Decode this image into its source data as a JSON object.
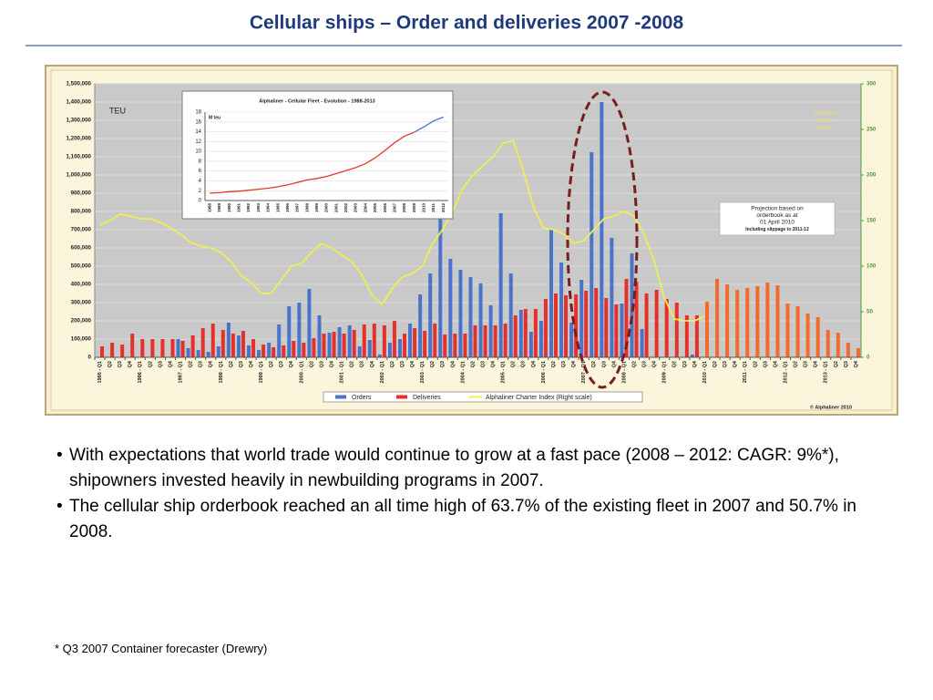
{
  "header": {
    "title": "Cellular ships – Order and deliveries 2007 -2008"
  },
  "chart_data": [
    {
      "type": "bar",
      "ylabel": "TEU",
      "y2label": [
        "Alphaliner",
        "Charter",
        "Index"
      ],
      "credit": "© Alphaliner 2010",
      "annotation": [
        "Projection based on",
        "orderbook as at",
        "01 April 2010",
        "Including slippage to 2011-12"
      ],
      "categories": [
        "1995 - Q1",
        "Q2",
        "Q3",
        "Q4",
        "1996 - Q1",
        "Q2",
        "Q3",
        "Q4",
        "1997 - Q1",
        "Q2",
        "Q3",
        "Q4",
        "1998 - Q1",
        "Q2",
        "Q3",
        "Q4",
        "1999 - Q1",
        "Q2",
        "Q3",
        "Q4",
        "2000 - Q1",
        "Q2",
        "Q3",
        "Q4",
        "2001 - Q1",
        "Q2",
        "Q3",
        "Q4",
        "2002 - Q1",
        "Q2",
        "Q3",
        "Q4",
        "2003 - Q1",
        "Q2",
        "Q3",
        "Q4",
        "2004 - Q1",
        "Q2",
        "Q3",
        "Q4",
        "2005 - Q1",
        "Q2",
        "Q3",
        "Q4",
        "2006 - Q1",
        "Q2",
        "Q3",
        "Q4",
        "2007 - Q1",
        "Q2",
        "Q3",
        "Q4",
        "2008 - Q1",
        "Q2",
        "Q3",
        "Q4",
        "2009 - Q1",
        "Q2",
        "Q3",
        "Q4",
        "2010 - Q1",
        "Q2",
        "Q3",
        "Q4",
        "2011 - Q1",
        "Q2",
        "Q3",
        "Q4",
        "2012 - Q1",
        "Q2",
        "Q3",
        "Q4",
        "2013 - Q1",
        "Q2",
        "Q3",
        "Q4"
      ],
      "projection_start": "2010 - Q1",
      "series": [
        {
          "name": "Orders",
          "color": "#4a74c9",
          "values": [
            0,
            0,
            0,
            0,
            0,
            0,
            0,
            0,
            100000,
            50000,
            40000,
            30000,
            60000,
            190000,
            120000,
            65000,
            40000,
            80000,
            180000,
            280000,
            300000,
            375000,
            230000,
            135000,
            165000,
            175000,
            60000,
            95000,
            15000,
            80000,
            100000,
            185000,
            345000,
            460000,
            780000,
            540000,
            480000,
            440000,
            405000,
            285000,
            790000,
            460000,
            260000,
            140000,
            200000,
            700000,
            520000,
            190000,
            425000,
            1125000,
            1400000,
            655000,
            295000,
            570000,
            155000,
            0,
            0,
            0,
            0,
            15000,
            null,
            null,
            null,
            null,
            null,
            null,
            null,
            null,
            null,
            null,
            null,
            null,
            null,
            null,
            null,
            null
          ]
        },
        {
          "name": "Deliveries",
          "color": "#e5312a",
          "projection_color": "#f26b2c",
          "values": [
            60000,
            80000,
            70000,
            130000,
            100000,
            100000,
            100000,
            100000,
            90000,
            120000,
            160000,
            185000,
            150000,
            130000,
            145000,
            100000,
            70000,
            55000,
            65000,
            90000,
            80000,
            105000,
            130000,
            140000,
            130000,
            150000,
            180000,
            185000,
            175000,
            200000,
            130000,
            160000,
            145000,
            185000,
            125000,
            130000,
            130000,
            175000,
            175000,
            175000,
            185000,
            230000,
            265000,
            265000,
            320000,
            350000,
            340000,
            345000,
            365000,
            380000,
            325000,
            290000,
            430000,
            415000,
            350000,
            370000,
            320000,
            300000,
            230000,
            230000,
            305000,
            430000,
            400000,
            370000,
            380000,
            390000,
            410000,
            395000,
            295000,
            280000,
            240000,
            220000,
            150000,
            135000,
            80000,
            50000
          ]
        },
        {
          "name": "Alphaliner Charter Index (Right scale)",
          "type": "line",
          "axis": "y2",
          "color": "#eeee55",
          "values": [
            145,
            150,
            157,
            155,
            152,
            152,
            148,
            142,
            135,
            126,
            122,
            120,
            115,
            105,
            90,
            82,
            70,
            70,
            85,
            100,
            103,
            115,
            125,
            120,
            112,
            105,
            90,
            68,
            58,
            75,
            88,
            92,
            100,
            125,
            140,
            160,
            185,
            200,
            210,
            220,
            235,
            238,
            205,
            165,
            142,
            140,
            135,
            125,
            128,
            140,
            152,
            155,
            160,
            155,
            135,
            105,
            65,
            42,
            40,
            40,
            45,
            null,
            null,
            null,
            null,
            null,
            null,
            null,
            null,
            null,
            null,
            null,
            null,
            null,
            null,
            null
          ]
        }
      ],
      "ylim": [
        0,
        1500000
      ],
      "yticks": [
        {
          "value": 0,
          "label": "0"
        },
        {
          "value": 100000,
          "label": "100,000"
        },
        {
          "value": 200000,
          "label": "200,000"
        },
        {
          "value": 300000,
          "label": "300,000"
        },
        {
          "value": 400000,
          "label": "400,000"
        },
        {
          "value": 500000,
          "label": "500,000"
        },
        {
          "value": 600000,
          "label": "600,000"
        },
        {
          "value": 700000,
          "label": "700,000"
        },
        {
          "value": 800000,
          "label": "800,000"
        },
        {
          "value": 900000,
          "label": "900,000"
        },
        {
          "value": 1000000,
          "label": "1,000,000"
        },
        {
          "value": 1100000,
          "label": "1,100,000"
        },
        {
          "value": 1200000,
          "label": "1,200,000"
        },
        {
          "value": 1300000,
          "label": "1,300,000"
        },
        {
          "value": 1400000,
          "label": "1,400,000"
        },
        {
          "value": 1500000,
          "label": "1,500,000"
        }
      ],
      "y2lim": [
        0,
        300
      ],
      "y2ticks": [
        0,
        50,
        100,
        150,
        200,
        250,
        300
      ],
      "grid": true,
      "legend": "bottom"
    },
    {
      "type": "line",
      "title": "Alphaliner - Cellular Fleet - Evolution - 1988-2013",
      "ylabel": "M teu",
      "categories": [
        "1988",
        "1989",
        "1990",
        "1991",
        "1992",
        "1993",
        "1994",
        "1995",
        "1996",
        "1997",
        "1998",
        "1999",
        "2000",
        "2001",
        "2002",
        "2003",
        "2004",
        "2005",
        "2006",
        "2007",
        "2008",
        "2009",
        "2010",
        "2011",
        "2012"
      ],
      "projection_start": "2010",
      "color": "#e03a2a",
      "projection_color": "#4a74c9",
      "values": [
        1.5,
        1.6,
        1.8,
        1.9,
        2.1,
        2.3,
        2.5,
        2.8,
        3.2,
        3.7,
        4.2,
        4.5,
        4.9,
        5.5,
        6.1,
        6.7,
        7.5,
        8.7,
        10.2,
        11.8,
        13.1,
        13.9,
        15.0,
        16.2,
        17.0
      ],
      "ylim": [
        0,
        18
      ],
      "yticks": [
        0,
        2,
        4,
        6,
        8,
        10,
        12,
        14,
        16,
        18
      ],
      "grid": true
    }
  ],
  "bullets": [
    "With expectations that world trade would continue to grow at a fast pace (2008 – 2012: CAGR: 9%*), shipowners invested heavily in newbuilding programs in 2007.",
    "The cellular ship orderbook reached an all time high of 63.7% of the existing fleet in 2007 and 50.7% in 2008."
  ],
  "footnote": "* Q3 2007 Container forecaster (Drewry)"
}
